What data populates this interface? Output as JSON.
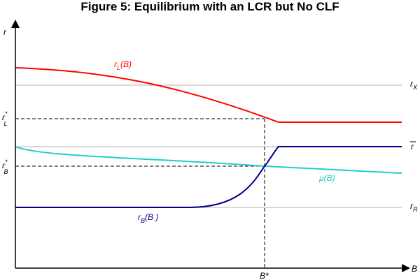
{
  "title": "Figure 5: Equilibrium with an LCR but No CLF",
  "axes": {
    "y_label": "r",
    "x_label": "B",
    "x_marker": "B*"
  },
  "y_markers": {
    "rL_star": {
      "base": "r",
      "sup": "*",
      "sub": "L"
    },
    "rB_star": {
      "base": "r",
      "sup": "*",
      "sub": "B"
    }
  },
  "reference_lines": {
    "rX": {
      "base": "r",
      "sub": "X"
    },
    "rbar": {
      "text": "r"
    },
    "rR": {
      "base": "r",
      "sub": "R"
    }
  },
  "curves": {
    "rL": {
      "base": "r",
      "sub": "L",
      "arg": "(B)",
      "color": "#ff0000"
    },
    "mu": {
      "text": "μ(B)",
      "color": "#22cccc"
    },
    "rB": {
      "base": "r",
      "sub": "B",
      "arg": "(B )",
      "color": "#00008b"
    }
  },
  "colors": {
    "reference": "#b0b0b0",
    "axis": "#000000"
  }
}
